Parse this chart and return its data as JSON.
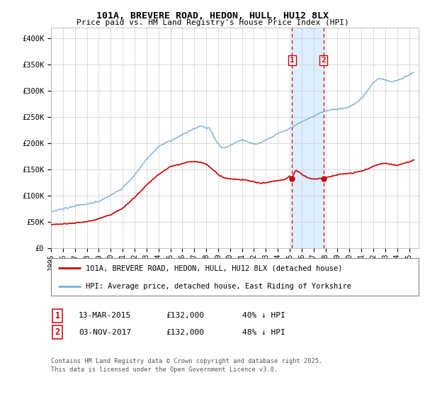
{
  "title_line1": "101A, BREVERE ROAD, HEDON, HULL, HU12 8LX",
  "title_line2": "Price paid vs. HM Land Registry's House Price Index (HPI)",
  "ylabel_ticks": [
    "£0",
    "£50K",
    "£100K",
    "£150K",
    "£200K",
    "£250K",
    "£300K",
    "£350K",
    "£400K"
  ],
  "ytick_values": [
    0,
    50000,
    100000,
    150000,
    200000,
    250000,
    300000,
    350000,
    400000
  ],
  "ylim": [
    0,
    420000
  ],
  "xlim_start": 1995.0,
  "xlim_end": 2025.8,
  "xtick_years": [
    1995,
    1996,
    1997,
    1998,
    1999,
    2000,
    2001,
    2002,
    2003,
    2004,
    2005,
    2006,
    2007,
    2008,
    2009,
    2010,
    2011,
    2012,
    2013,
    2014,
    2015,
    2016,
    2017,
    2018,
    2019,
    2020,
    2021,
    2022,
    2023,
    2024,
    2025
  ],
  "sale1_x": 2015.19,
  "sale1_y": 132000,
  "sale2_x": 2017.84,
  "sale2_y": 132000,
  "highlight_color": "#ddeeff",
  "vline_color": "#cc0000",
  "red_line_color": "#cc0000",
  "blue_line_color": "#7aadd4",
  "legend_entry1": "101A, BREVERE ROAD, HEDON, HULL, HU12 8LX (detached house)",
  "legend_entry2": "HPI: Average price, detached house, East Riding of Yorkshire",
  "table_row1": [
    "1",
    "13-MAR-2015",
    "£132,000",
    "40% ↓ HPI"
  ],
  "table_row2": [
    "2",
    "03-NOV-2017",
    "£132,000",
    "48% ↓ HPI"
  ],
  "footer": "Contains HM Land Registry data © Crown copyright and database right 2025.\nThis data is licensed under the Open Government Licence v3.0.",
  "background_color": "#ffffff",
  "plot_bg_color": "#ffffff",
  "grid_color": "#cccccc"
}
